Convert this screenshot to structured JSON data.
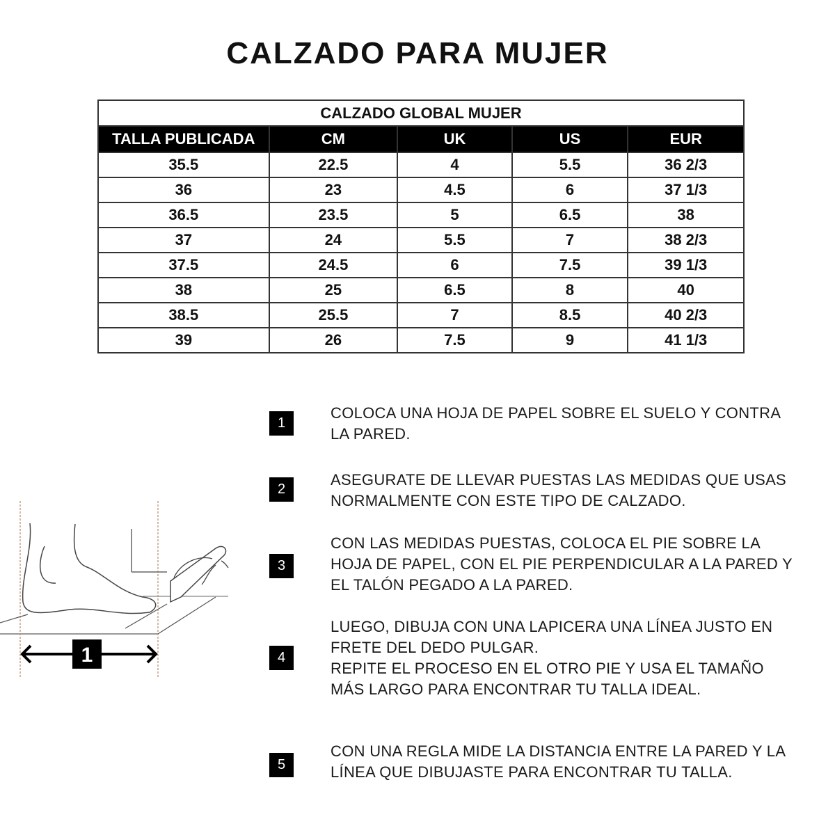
{
  "title": "CALZADO PARA MUJER",
  "table": {
    "caption": "CALZADO GLOBAL MUJER",
    "headers": [
      "TALLA PUBLICADA",
      "CM",
      "UK",
      "US",
      "EUR"
    ],
    "rows": [
      [
        "35.5",
        "22.5",
        "4",
        "5.5",
        "36 2/3"
      ],
      [
        "36",
        "23",
        "4.5",
        "6",
        "37 1/3"
      ],
      [
        "36.5",
        "23.5",
        "5",
        "6.5",
        "38"
      ],
      [
        "37",
        "24",
        "5.5",
        "7",
        "38 2/3"
      ],
      [
        "37.5",
        "24.5",
        "6",
        "7.5",
        "39 1/3"
      ],
      [
        "38",
        "25",
        "6.5",
        "8",
        "40"
      ],
      [
        "38.5",
        "25.5",
        "7",
        "8.5",
        "40 2/3"
      ],
      [
        "39",
        "26",
        "7.5",
        "9",
        "41 1/3"
      ]
    ]
  },
  "illustration": {
    "label": "1"
  },
  "steps": [
    {
      "number": "1",
      "lines": [
        "COLOCA UNA HOJA DE PAPEL SOBRE EL SUELO Y CONTRA",
        "LA PARED."
      ]
    },
    {
      "number": "2",
      "lines": [
        "ASEGURATE DE LLEVAR PUESTAS LAS MEDIDAS QUE USAS",
        "NORMALMENTE CON ESTE TIPO DE CALZADO."
      ]
    },
    {
      "number": "3",
      "lines": [
        "CON LAS MEDIDAS PUESTAS, COLOCA EL PIE SOBRE LA",
        "HOJA DE PAPEL, CON EL PIE PERPENDICULAR A LA PARED Y",
        "EL TALÓN PEGADO A LA PARED."
      ]
    },
    {
      "number": "4",
      "lines": [
        "LUEGO, DIBUJA CON UNA LAPICERA UNA LÍNEA JUSTO EN",
        "FRETE DEL DEDO PULGAR.",
        "REPITE EL PROCESO EN EL OTRO PIE Y USA EL TAMAÑO",
        "MÁS LARGO PARA ENCONTRAR TU TALLA IDEAL."
      ]
    },
    {
      "number": "5",
      "lines": [
        "CON UNA REGLA MIDE LA DISTANCIA ENTRE LA PARED Y LA",
        "LÍNEA QUE DIBUJASTE PARA ENCONTRAR TU TALLA."
      ]
    }
  ]
}
